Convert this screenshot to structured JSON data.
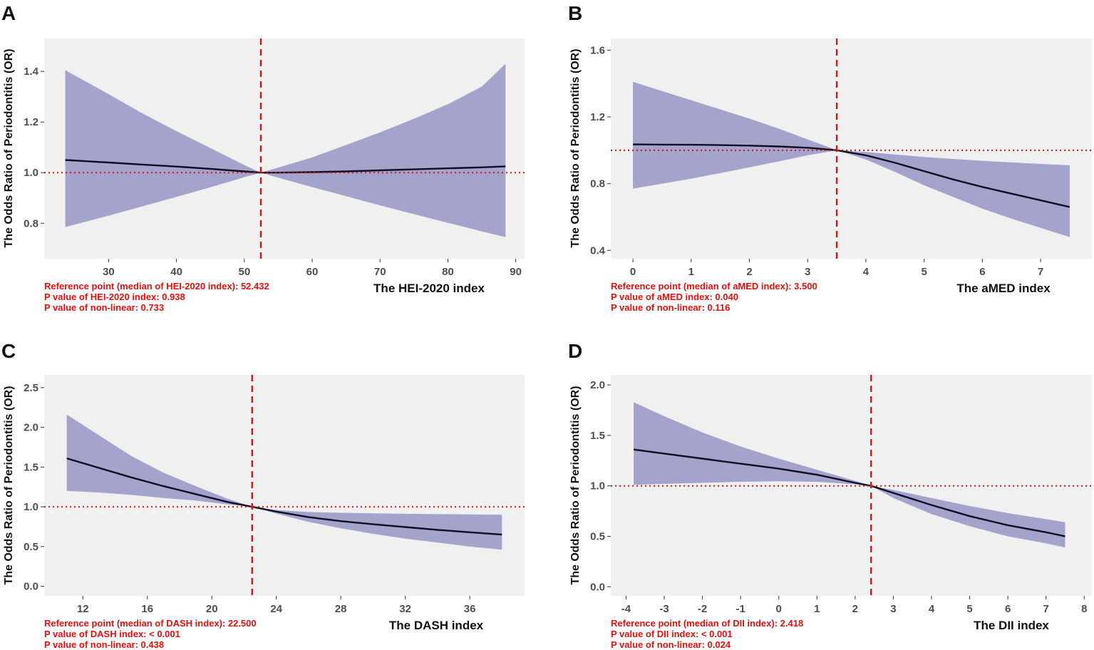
{
  "figure": {
    "ylabel": "The Odds Ratio of Periodontitis (OR)",
    "colors": {
      "panel_bg": "#f0f0f0",
      "band": "#a3a3cc",
      "line": "#0d0d26",
      "ref": "#e01010",
      "vline": "#cc1a1a",
      "tick_text": "#4d4d4d",
      "text": "#111111"
    }
  },
  "chart_data": [
    {
      "panel": "A",
      "type": "line",
      "title": "",
      "xlabel": "The HEI-2020 index",
      "ylabel": "The Odds Ratio of Periodontitis (OR)",
      "xlim": [
        20.5,
        91.3
      ],
      "ylim": [
        0.66,
        1.53
      ],
      "xticks": [
        30,
        40,
        50,
        60,
        70,
        80,
        90
      ],
      "xtick_labels": [
        "30",
        "40",
        "50",
        "60",
        "70",
        "80",
        "90"
      ],
      "yticks": [
        0.8,
        1.0,
        1.2,
        1.4
      ],
      "ytick_labels": [
        "0.8",
        "1.0",
        "1.2",
        "1.4"
      ],
      "reference_x": 52.432,
      "reference_y": 1.0,
      "series": [
        {
          "name": "OR",
          "x": [
            23.6,
            30,
            35,
            40,
            45,
            50,
            52.432,
            55,
            60,
            65,
            70,
            75,
            80,
            85,
            88.5
          ],
          "y": [
            1.05,
            1.04,
            1.032,
            1.024,
            1.015,
            1.005,
            1.0,
            1.0,
            1.002,
            1.005,
            1.009,
            1.013,
            1.017,
            1.021,
            1.025
          ],
          "lower": [
            0.785,
            0.83,
            0.867,
            0.904,
            0.942,
            0.982,
            1.0,
            0.98,
            0.943,
            0.907,
            0.871,
            0.836,
            0.802,
            0.768,
            0.745
          ],
          "upper": [
            1.405,
            1.31,
            1.234,
            1.164,
            1.097,
            1.03,
            1.0,
            1.02,
            1.06,
            1.109,
            1.159,
            1.213,
            1.27,
            1.34,
            1.43
          ]
        }
      ],
      "annotations": [
        "Reference point (median of HEI-2020 index): 52.432",
        "P value of HEI-2020 index: 0.938",
        "P value of non-linear: 0.733"
      ]
    },
    {
      "panel": "B",
      "type": "line",
      "title": "",
      "xlabel": "The aMED index",
      "ylabel": "The Odds Ratio of Periodontitis (OR)",
      "xlim": [
        -0.38,
        7.88
      ],
      "ylim": [
        0.35,
        1.67
      ],
      "xticks": [
        0,
        1,
        2,
        3,
        4,
        5,
        6,
        7
      ],
      "xtick_labels": [
        "0",
        "1",
        "2",
        "3",
        "4",
        "5",
        "6",
        "7"
      ],
      "yticks": [
        0.4,
        0.8,
        1.2,
        1.6
      ],
      "ytick_labels": [
        "0.4",
        "0.8",
        "1.2",
        "1.6"
      ],
      "reference_x": 3.5,
      "reference_y": 1.0,
      "series": [
        {
          "name": "OR",
          "x": [
            0,
            0.5,
            1,
            1.5,
            2,
            2.5,
            3,
            3.5,
            4,
            4.5,
            5,
            5.5,
            6,
            6.5,
            7,
            7.5
          ],
          "y": [
            1.035,
            1.034,
            1.033,
            1.031,
            1.028,
            1.023,
            1.015,
            1.0,
            0.97,
            0.925,
            0.875,
            0.825,
            0.78,
            0.74,
            0.7,
            0.66
          ],
          "lower": [
            0.77,
            0.8,
            0.83,
            0.863,
            0.898,
            0.933,
            0.97,
            1.0,
            0.945,
            0.87,
            0.79,
            0.72,
            0.65,
            0.59,
            0.535,
            0.48
          ],
          "upper": [
            1.41,
            1.355,
            1.3,
            1.245,
            1.19,
            1.13,
            1.065,
            1.0,
            0.99,
            0.975,
            0.96,
            0.948,
            0.937,
            0.927,
            0.918,
            0.91
          ]
        }
      ],
      "annotations": [
        "Reference point (median of aMED index): 3.500",
        "P value of aMED index: 0.040",
        "P value of non-linear: 0.116"
      ]
    },
    {
      "panel": "C",
      "type": "line",
      "title": "",
      "xlabel": "The DASH index",
      "ylabel": "The Odds Ratio of Periodontitis (OR)",
      "xlim": [
        9.6,
        39.4
      ],
      "ylim": [
        -0.12,
        2.66
      ],
      "xticks": [
        12,
        16,
        20,
        24,
        28,
        32,
        36
      ],
      "xtick_labels": [
        "12",
        "16",
        "20",
        "24",
        "28",
        "32",
        "36"
      ],
      "yticks": [
        0.0,
        0.5,
        1.0,
        1.5,
        2.0,
        2.5
      ],
      "ytick_labels": [
        "0.0",
        "0.5",
        "1.0",
        "1.5",
        "2.0",
        "2.5"
      ],
      "reference_x": 22.5,
      "reference_y": 1.0,
      "series": [
        {
          "name": "OR",
          "x": [
            11,
            13,
            15,
            17,
            19,
            21,
            22.5,
            24,
            26,
            28,
            30,
            32,
            34,
            36,
            38
          ],
          "y": [
            1.61,
            1.49,
            1.37,
            1.26,
            1.16,
            1.06,
            1.0,
            0.94,
            0.87,
            0.82,
            0.78,
            0.745,
            0.71,
            0.68,
            0.65
          ],
          "lower": [
            1.2,
            1.18,
            1.15,
            1.11,
            1.08,
            1.03,
            1.0,
            0.915,
            0.81,
            0.73,
            0.66,
            0.6,
            0.55,
            0.5,
            0.46
          ],
          "upper": [
            2.16,
            1.9,
            1.64,
            1.43,
            1.26,
            1.1,
            1.0,
            0.96,
            0.935,
            0.925,
            0.918,
            0.912,
            0.908,
            0.905,
            0.9
          ]
        }
      ],
      "annotations": [
        "Reference point (median of DASH index): 22.500",
        "P value of DASH index: < 0.001",
        "P value of non-linear: 0.438"
      ]
    },
    {
      "panel": "D",
      "type": "line",
      "title": "",
      "xlabel": "The DII index",
      "ylabel": "The Odds Ratio of Periodontitis (OR)",
      "xlim": [
        -4.4,
        8.2
      ],
      "ylim": [
        -0.09,
        2.1
      ],
      "xticks": [
        -4,
        -3,
        -2,
        -1,
        0,
        1,
        2,
        3,
        4,
        5,
        6,
        7,
        8
      ],
      "xtick_labels": [
        "-4",
        "-3",
        "-2",
        "-1",
        "0",
        "1",
        "2",
        "3",
        "4",
        "5",
        "6",
        "7",
        "8"
      ],
      "yticks": [
        0.0,
        0.5,
        1.0,
        1.5,
        2.0
      ],
      "ytick_labels": [
        "0.0",
        "0.5",
        "1.0",
        "1.5",
        "2.0"
      ],
      "reference_x": 2.418,
      "reference_y": 1.0,
      "series": [
        {
          "name": "OR",
          "x": [
            -3.8,
            -3,
            -2,
            -1,
            0,
            1,
            2,
            2.418,
            3,
            4,
            5,
            6,
            7,
            7.5
          ],
          "y": [
            1.36,
            1.32,
            1.27,
            1.22,
            1.17,
            1.11,
            1.03,
            1.0,
            0.93,
            0.81,
            0.7,
            0.61,
            0.54,
            0.5
          ],
          "lower": [
            1.01,
            1.02,
            1.03,
            1.04,
            1.045,
            1.04,
            1.015,
            1.0,
            0.88,
            0.72,
            0.6,
            0.5,
            0.43,
            0.39
          ],
          "upper": [
            1.83,
            1.69,
            1.53,
            1.39,
            1.27,
            1.16,
            1.05,
            1.0,
            0.96,
            0.88,
            0.8,
            0.73,
            0.67,
            0.64
          ]
        }
      ],
      "annotations": [
        "Reference point (median of DII index): 2.418",
        "P value of DII index: < 0.001",
        "P value of non-linear: 0.024"
      ]
    }
  ]
}
